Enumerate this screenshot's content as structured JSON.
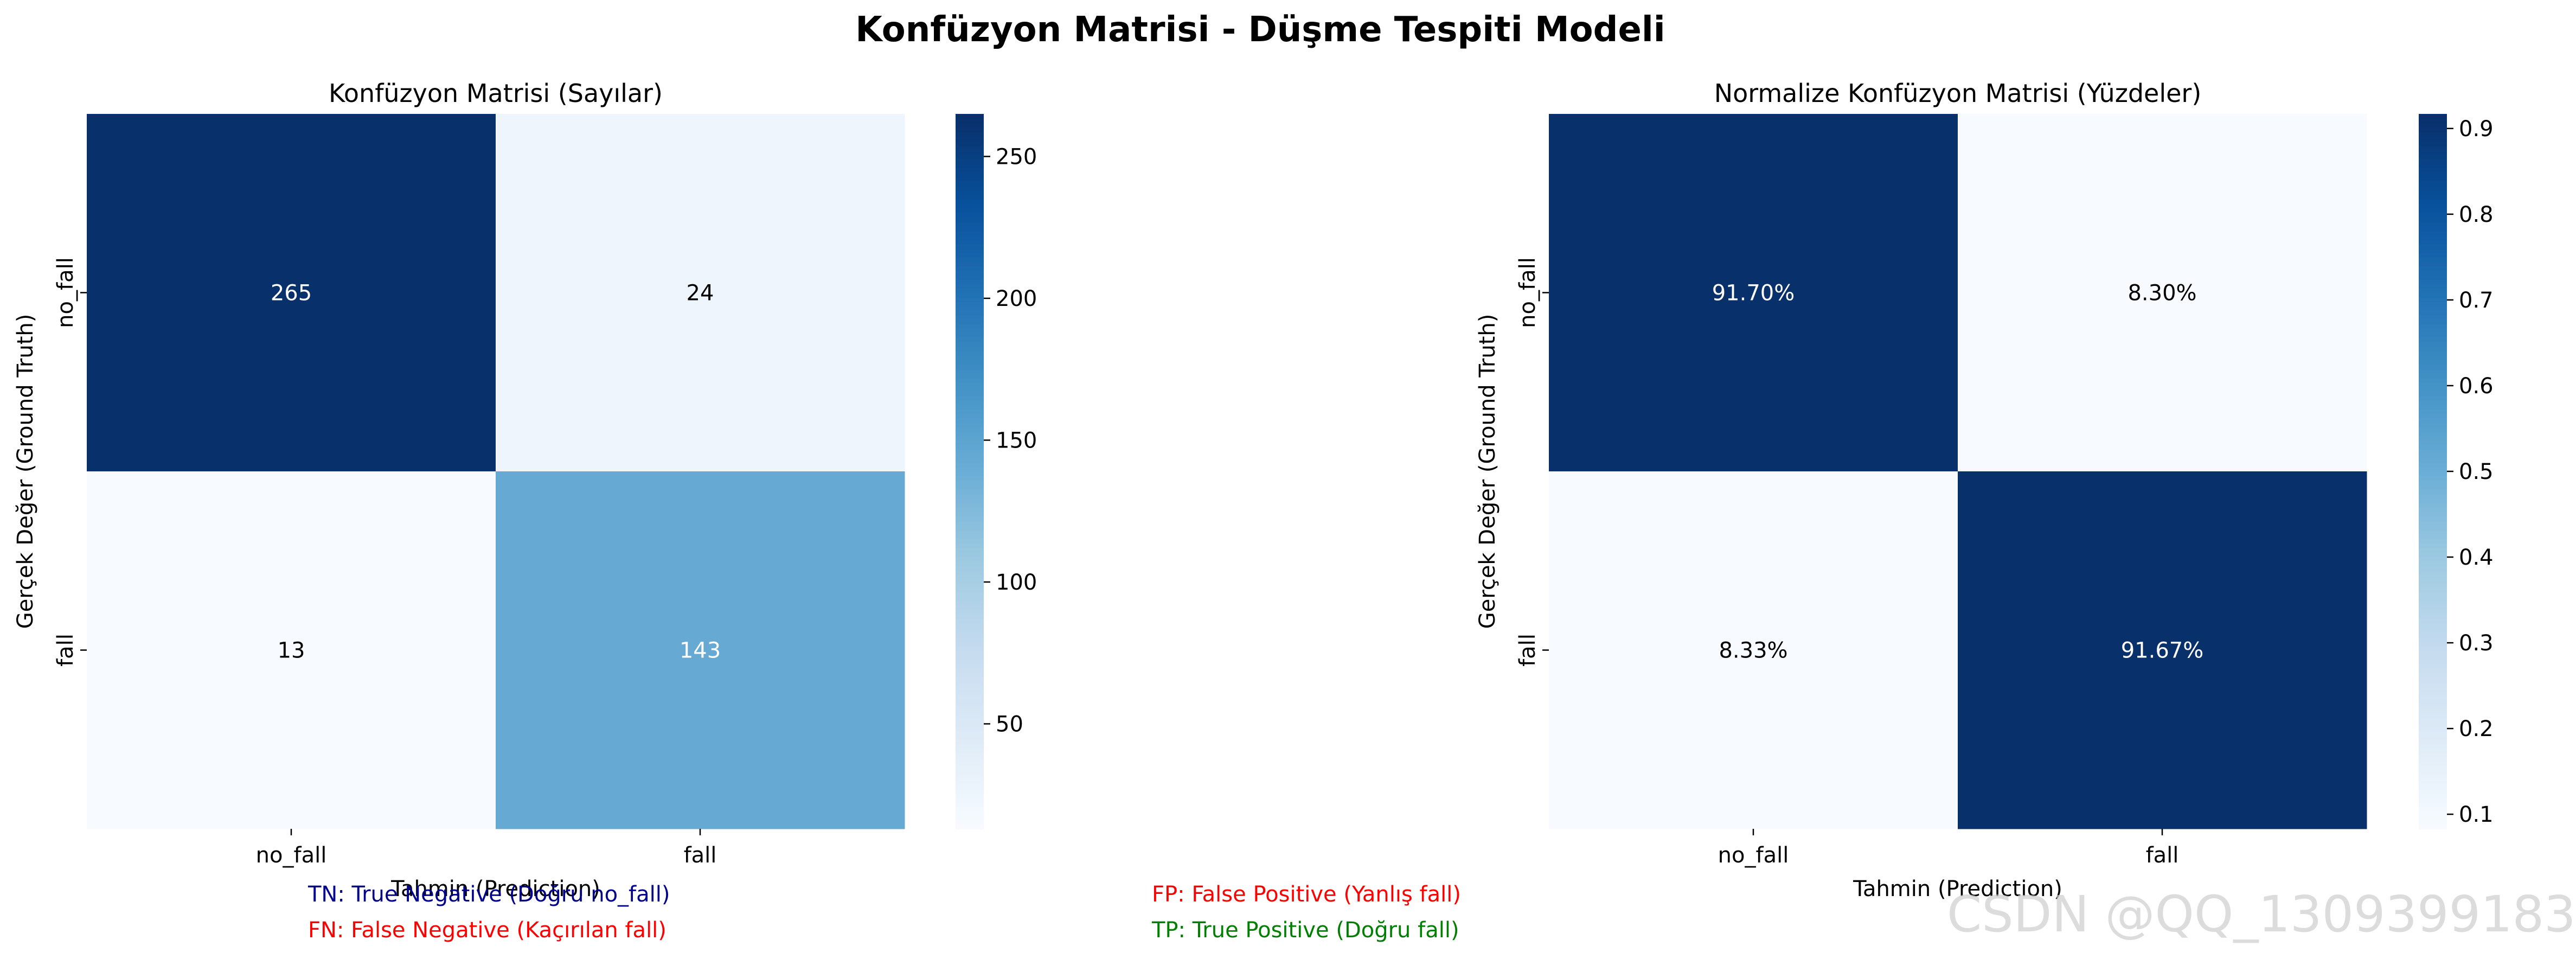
{
  "figure": {
    "suptitle": "Konfüzyon Matrisi - Düşme Tespiti Modeli",
    "watermark": "CSDN @QQ_1309399183"
  },
  "colors": {
    "cmap_low": "#f7fbff",
    "cmap_mid": "#6baed6",
    "cmap_high": "#08306b",
    "dark_text": "#000000",
    "light_text": "#ffffff",
    "legend_tn": "#00008b",
    "legend_fn": "#ff0000",
    "legend_fp": "#ff0000",
    "legend_tp": "#008000"
  },
  "legend_notes": {
    "tn": "TN: True Negative (Doğru no_fall)",
    "fn": "FN: False Negative (Kaçırılan fall)",
    "fp": "FP: False Positive (Yanlış fall)",
    "tp": "TP: True Positive (Doğru fall)"
  },
  "chart_data": [
    {
      "type": "heatmap",
      "title": "Konfüzyon Matrisi (Sayılar)",
      "xlabel": "Tahmin (Prediction)",
      "ylabel": "Gerçek Değer (Ground Truth)",
      "x_categories": [
        "no_fall",
        "fall"
      ],
      "y_categories": [
        "no_fall",
        "fall"
      ],
      "values": [
        [
          265,
          24
        ],
        [
          13,
          143
        ]
      ],
      "cell_labels": [
        [
          "265",
          "24"
        ],
        [
          "13",
          "143"
        ]
      ],
      "colorbar": {
        "range": [
          13,
          265
        ],
        "ticks": [
          50,
          100,
          150,
          200,
          250
        ],
        "tick_labels": [
          "50",
          "100",
          "150",
          "200",
          "250"
        ]
      },
      "cmap": "Blues",
      "grid": false
    },
    {
      "type": "heatmap",
      "title": "Normalize Konfüzyon Matrisi (Yüzdeler)",
      "xlabel": "Tahmin (Prediction)",
      "ylabel": "Gerçek Değer (Ground Truth)",
      "x_categories": [
        "no_fall",
        "fall"
      ],
      "y_categories": [
        "no_fall",
        "fall"
      ],
      "values": [
        [
          0.917,
          0.083
        ],
        [
          0.0833,
          0.9167
        ]
      ],
      "cell_labels": [
        [
          "91.70%",
          "8.30%"
        ],
        [
          "8.33%",
          "91.67%"
        ]
      ],
      "colorbar": {
        "range": [
          0.083,
          0.917
        ],
        "ticks": [
          0.1,
          0.2,
          0.3,
          0.4,
          0.5,
          0.6,
          0.7,
          0.8,
          0.9
        ],
        "tick_labels": [
          "0.1",
          "0.2",
          "0.3",
          "0.4",
          "0.5",
          "0.6",
          "0.7",
          "0.8",
          "0.9"
        ]
      },
      "cmap": "Blues",
      "grid": false
    }
  ]
}
